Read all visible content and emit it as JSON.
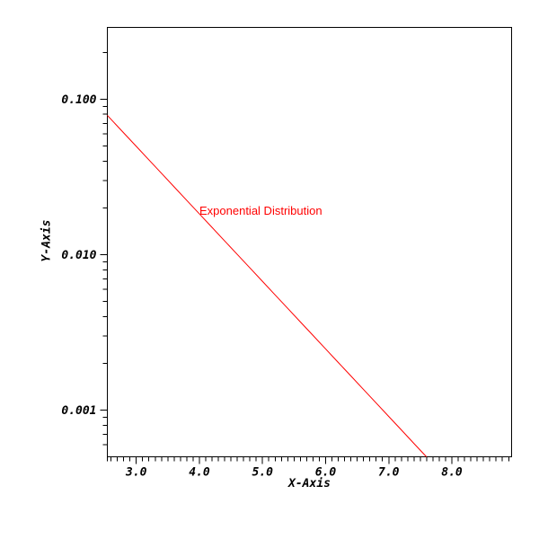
{
  "page": {
    "background": "#ffffff"
  },
  "colors": {
    "axis": "#000000",
    "line": "#ff0000",
    "annotation": "#ff0000"
  },
  "chart_data": {
    "type": "line",
    "title": "",
    "xlabel": "X-Axis",
    "ylabel": "Y-Axis",
    "scale": {
      "x": "linear",
      "y": "log"
    },
    "xlim": [
      2.542,
      8.946
    ],
    "ylim": [
      0.000502,
      0.2897
    ],
    "grid": false,
    "legend": null,
    "x_major_ticks": {
      "values": [
        3,
        4,
        5,
        6,
        7,
        8
      ],
      "labels": [
        "3.0",
        "4.0",
        "5.0",
        "6.0",
        "7.0",
        "8.0"
      ]
    },
    "x_minor_step": 0.1,
    "y_major_ticks": {
      "values": [
        0.1,
        0.01,
        0.001
      ],
      "labels": [
        "0.100",
        "0.010",
        "0.001"
      ]
    },
    "y_minor_multipliers": [
      2,
      3,
      4,
      5,
      6,
      7,
      8,
      9
    ],
    "series": [
      {
        "name": "Exponential Distribution",
        "color": "#ff0000",
        "function": "y = exp(-x)",
        "x": [
          2.542,
          2.6,
          2.8,
          3.0,
          3.2,
          3.4,
          3.6,
          3.8,
          4.0,
          4.2,
          4.4,
          4.6,
          4.8,
          5.0,
          5.2,
          5.4,
          5.6,
          5.8,
          6.0,
          6.2,
          6.4,
          6.6,
          6.8,
          7.0,
          7.2,
          7.4,
          7.597
        ],
        "y": [
          0.07871,
          0.074274,
          0.06081,
          0.049787,
          0.040762,
          0.033373,
          0.027324,
          0.022371,
          0.018316,
          0.014996,
          0.012277,
          0.010052,
          0.00823,
          0.006738,
          0.005517,
          0.004517,
          0.003698,
          0.003028,
          0.002479,
          0.002029,
          0.001662,
          0.00136,
          0.001114,
          0.000912,
          0.000747,
          0.000611,
          0.000502
        ]
      }
    ],
    "annotation": {
      "text": "Exponential Distribution",
      "color": "#ff0000",
      "x": 4.0,
      "y": 0.01832
    }
  }
}
